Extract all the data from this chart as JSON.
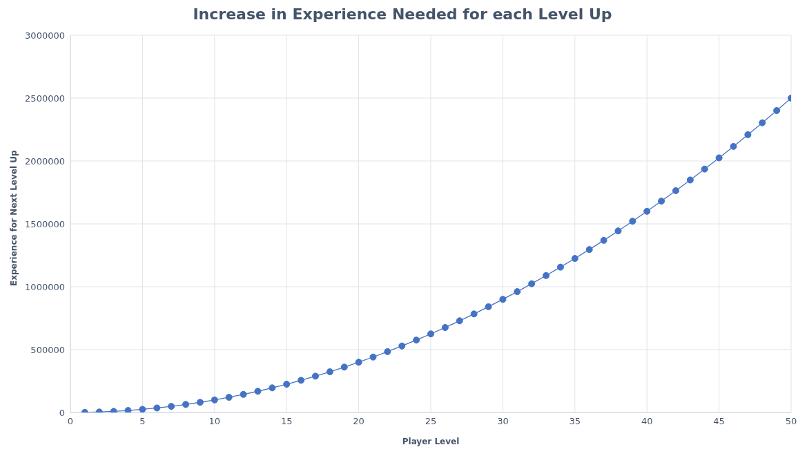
{
  "chart_data": {
    "type": "line",
    "title": "Increase in Experience Needed for each Level Up",
    "xlabel": "Player Level",
    "ylabel": "Experience for Next Level Up",
    "x": [
      1,
      2,
      3,
      4,
      5,
      6,
      7,
      8,
      9,
      10,
      11,
      12,
      13,
      14,
      15,
      16,
      17,
      18,
      19,
      20,
      21,
      22,
      23,
      24,
      25,
      26,
      27,
      28,
      29,
      30,
      31,
      32,
      33,
      34,
      35,
      36,
      37,
      38,
      39,
      40,
      41,
      42,
      43,
      44,
      45,
      46,
      47,
      48,
      49,
      50
    ],
    "series": [
      {
        "color": "#4472c4",
        "values": [
          1000,
          4000,
          9000,
          16000,
          25000,
          36000,
          49000,
          64000,
          81000,
          100000,
          121000,
          144000,
          169000,
          196000,
          225000,
          256000,
          289000,
          324000,
          361000,
          400000,
          441000,
          484000,
          529000,
          576000,
          625000,
          676000,
          729000,
          784000,
          841000,
          900000,
          961000,
          1024000,
          1089000,
          1156000,
          1225000,
          1296000,
          1369000,
          1444000,
          1521000,
          1600000,
          1681000,
          1764000,
          1849000,
          1936000,
          2025000,
          2116000,
          2209000,
          2304000,
          2401000,
          2500000
        ]
      }
    ],
    "xlim": [
      0,
      50
    ],
    "xticks": [
      0,
      5,
      10,
      15,
      20,
      25,
      30,
      35,
      40,
      45,
      50
    ],
    "ylim": [
      0,
      3000000
    ],
    "yticks": [
      0,
      500000,
      1000000,
      1500000,
      2000000,
      2500000,
      3000000
    ],
    "grid": true,
    "marker": "circle",
    "line_style": "solid",
    "legend": false
  }
}
